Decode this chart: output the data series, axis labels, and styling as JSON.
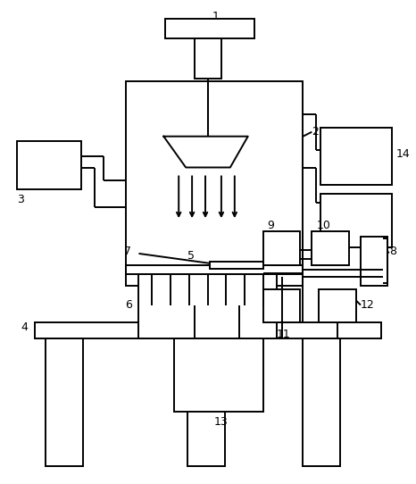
{
  "background_color": "#ffffff",
  "line_color": "#000000",
  "lw": 1.4
}
